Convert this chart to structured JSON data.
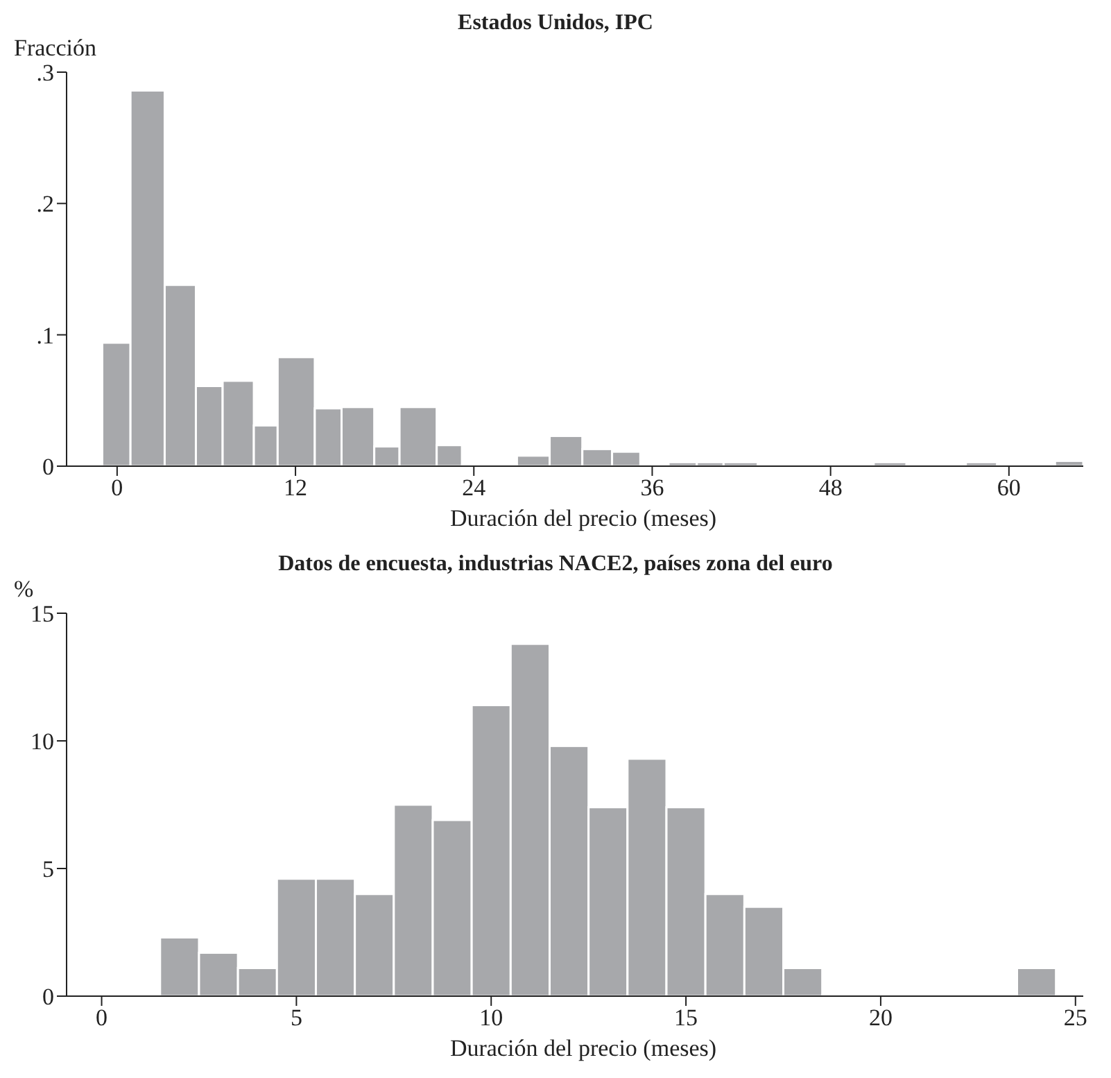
{
  "chart_data": [
    {
      "type": "histogram",
      "title": "Estados Unidos, IPC",
      "xlabel": "Duración del precio (meses)",
      "ylabel": "Fracción",
      "color": "#a7a8ab",
      "bins": [
        -1,
        0.9,
        3.2,
        5.3,
        7.1,
        9.2,
        10.8,
        13.3,
        15.1,
        17.3,
        19,
        21.5,
        23.2,
        26.9,
        29.1,
        31.3,
        33.3,
        35.2,
        37.1,
        39,
        40.8,
        43.1,
        50.9,
        53.1,
        57.1,
        59.2,
        63.1,
        65
      ],
      "values": [
        0.094,
        0.286,
        0.138,
        0.061,
        0.065,
        0.031,
        0.083,
        0.044,
        0.045,
        0.015,
        0.045,
        0.016,
        0,
        0.008,
        0.023,
        0.013,
        0.011,
        0,
        0.003,
        0.003,
        0.003,
        0,
        0.003,
        0,
        0.003,
        0,
        0.004
      ],
      "xlim": [
        -3.4,
        65
      ],
      "xticks": [
        0,
        12,
        24,
        36,
        48,
        60
      ],
      "ylim": [
        0,
        0.3
      ],
      "yticks": [
        0,
        {
          "value": 0.1,
          "label": ".1"
        },
        {
          "value": 0.2,
          "label": ".2"
        },
        {
          "value": 0.3,
          "label": ".3"
        }
      ]
    },
    {
      "type": "histogram",
      "title": "Datos de encuesta, industrias NACE2, países zona del euro",
      "xlabel": "Duración del precio (meses)",
      "ylabel": "%",
      "color": "#a7a8ab",
      "bins": [
        1.5,
        2.5,
        3.5,
        4.5,
        5.5,
        6.5,
        7.5,
        8.5,
        9.5,
        10.5,
        11.5,
        12.5,
        13.5,
        14.5,
        15.5,
        16.5,
        17.5,
        18.5,
        19.5,
        20.5,
        21.5,
        22.5,
        23.5,
        24.5
      ],
      "values": [
        2.3,
        1.7,
        1.1,
        4.6,
        4.6,
        4.0,
        7.5,
        6.9,
        11.4,
        13.8,
        9.8,
        7.4,
        9.3,
        7.4,
        4.0,
        3.5,
        1.1,
        0,
        0,
        0,
        0,
        0,
        1.1
      ],
      "xlim": [
        -0.9,
        25.2
      ],
      "xticks": [
        0,
        5,
        10,
        15,
        20,
        25
      ],
      "ylim": [
        0,
        15
      ],
      "yticks": [
        0,
        5,
        10,
        15
      ]
    }
  ]
}
